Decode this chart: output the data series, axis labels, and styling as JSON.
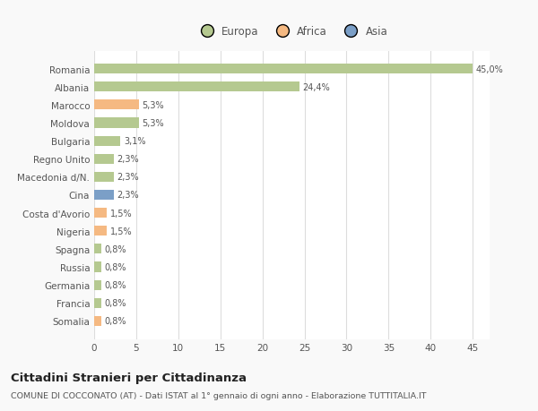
{
  "countries": [
    "Romania",
    "Albania",
    "Marocco",
    "Moldova",
    "Bulgaria",
    "Regno Unito",
    "Macedonia d/N.",
    "Cina",
    "Costa d'Avorio",
    "Nigeria",
    "Spagna",
    "Russia",
    "Germania",
    "Francia",
    "Somalia"
  ],
  "values": [
    45.0,
    24.4,
    5.3,
    5.3,
    3.1,
    2.3,
    2.3,
    2.3,
    1.5,
    1.5,
    0.8,
    0.8,
    0.8,
    0.8,
    0.8
  ],
  "labels": [
    "45,0%",
    "24,4%",
    "5,3%",
    "5,3%",
    "3,1%",
    "2,3%",
    "2,3%",
    "2,3%",
    "1,5%",
    "1,5%",
    "0,8%",
    "0,8%",
    "0,8%",
    "0,8%",
    "0,8%"
  ],
  "colors": [
    "#b5c990",
    "#b5c990",
    "#f5b982",
    "#b5c990",
    "#b5c990",
    "#b5c990",
    "#b5c990",
    "#7b9fc7",
    "#f5b982",
    "#f5b982",
    "#b5c990",
    "#b5c990",
    "#b5c990",
    "#b5c990",
    "#f5b982"
  ],
  "legend_labels": [
    "Europa",
    "Africa",
    "Asia"
  ],
  "legend_colors": [
    "#b5c990",
    "#f5b982",
    "#7b9fc7"
  ],
  "xlabel_ticks": [
    0,
    5,
    10,
    15,
    20,
    25,
    30,
    35,
    40,
    45
  ],
  "title": "Cittadini Stranieri per Cittadinanza",
  "subtitle": "COMUNE DI COCCONATO (AT) - Dati ISTAT al 1° gennaio di ogni anno - Elaborazione TUTTITALIA.IT",
  "fig_bg_color": "#f9f9f9",
  "plot_bg_color": "#ffffff",
  "grid_color": "#dddddd",
  "text_color": "#555555",
  "label_color": "#555555"
}
